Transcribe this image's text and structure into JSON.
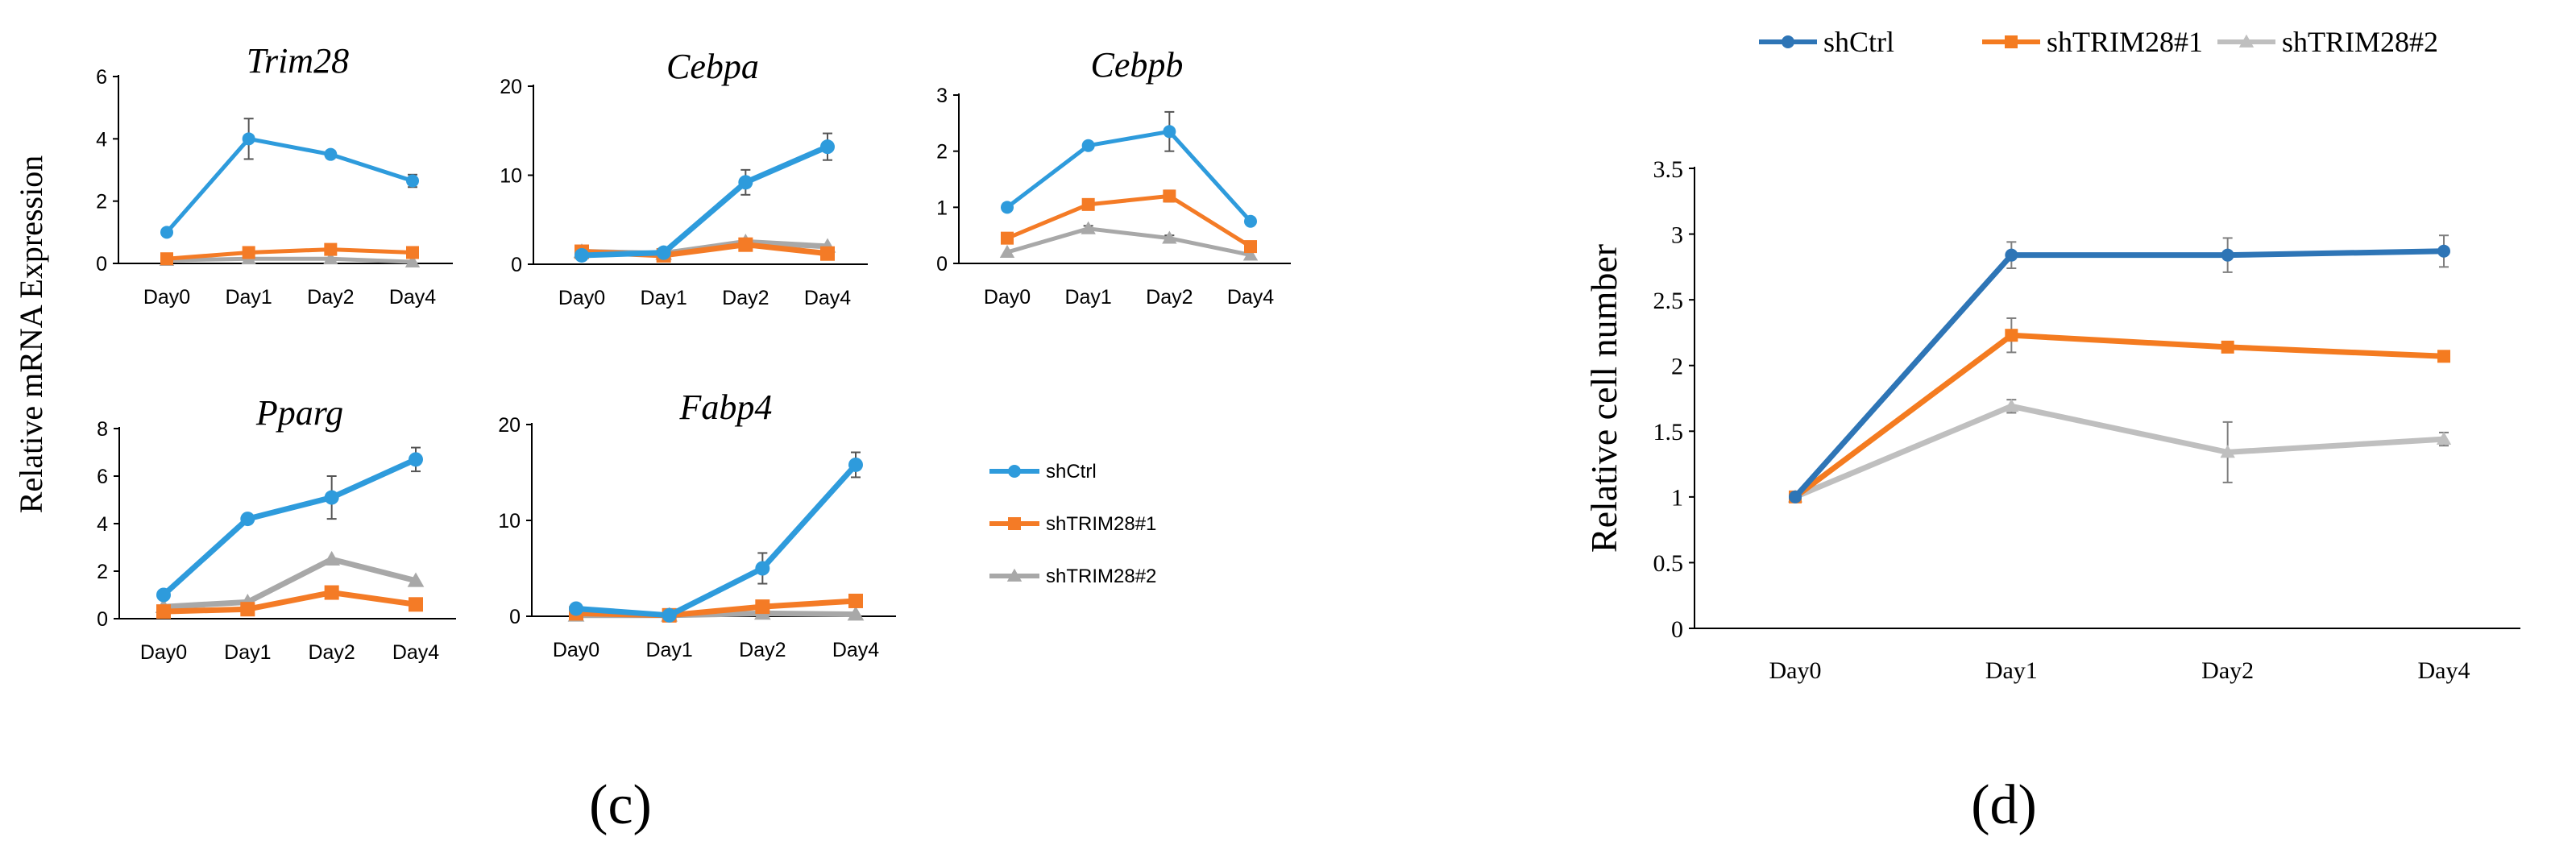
{
  "panel_c": {
    "label": "(c)",
    "ylabel": "Relative  mRNA  Expression",
    "legend": [
      "shCtrl",
      "shTRIM28#1",
      "shTRIM28#2"
    ]
  },
  "panel_d": {
    "label": "(d)",
    "legend": [
      "shCtrl",
      "shTRIM28#1",
      "shTRIM28#2"
    ]
  },
  "colors": {
    "c_ctrl": "#2E9BDC",
    "c_sh1": "#F47B26",
    "c_sh2": "#A8A8A8",
    "d_ctrl": "#2E75B6",
    "d_sh1": "#F47B20",
    "d_sh2": "#BFBFBF"
  },
  "chart_data": [
    {
      "id": "trim28",
      "panel": "c",
      "type": "line",
      "title": "Trim28",
      "categories": [
        "Day0",
        "Day1",
        "Day2",
        "Day4"
      ],
      "ylim": [
        0,
        6
      ],
      "yticks": [
        0,
        2,
        4,
        6
      ],
      "ytick_labels": [
        "0",
        "2",
        "4",
        "6"
      ],
      "series": [
        {
          "name": "shCtrl",
          "values": [
            1.0,
            4.0,
            3.5,
            2.65
          ],
          "errors": [
            0,
            0.65,
            0.12,
            0.2
          ]
        },
        {
          "name": "shTRIM28#1",
          "values": [
            0.15,
            0.35,
            0.45,
            0.35
          ],
          "errors": [
            0,
            0,
            0,
            0
          ]
        },
        {
          "name": "shTRIM28#2",
          "values": [
            0.1,
            0.15,
            0.15,
            0.05
          ],
          "errors": [
            0,
            0,
            0,
            0
          ]
        }
      ]
    },
    {
      "id": "cebpa",
      "panel": "c",
      "type": "line",
      "title": "Cebpa",
      "categories": [
        "Day0",
        "Day1",
        "Day2",
        "Day4"
      ],
      "ylim": [
        0,
        20
      ],
      "yticks": [
        0,
        10,
        20
      ],
      "ytick_labels": [
        "0",
        "10",
        "20"
      ],
      "series": [
        {
          "name": "shCtrl",
          "values": [
            1.0,
            1.3,
            9.2,
            13.2
          ],
          "errors": [
            0,
            0,
            1.4,
            1.5
          ]
        },
        {
          "name": "shTRIM28#1",
          "values": [
            1.4,
            1.0,
            2.2,
            1.2
          ],
          "errors": [
            0,
            0,
            0,
            0
          ]
        },
        {
          "name": "shTRIM28#2",
          "values": [
            1.4,
            1.2,
            2.5,
            2.0
          ],
          "errors": [
            0,
            0,
            0,
            0
          ]
        }
      ]
    },
    {
      "id": "cebpb",
      "panel": "c",
      "type": "line",
      "title": "Cebpb",
      "categories": [
        "Day0",
        "Day1",
        "Day2",
        "Day4"
      ],
      "ylim": [
        0,
        3
      ],
      "yticks": [
        0,
        1,
        2,
        3
      ],
      "ytick_labels": [
        "0",
        "1",
        "2",
        "3"
      ],
      "series": [
        {
          "name": "shCtrl",
          "values": [
            1.0,
            2.1,
            2.35,
            0.75
          ],
          "errors": [
            0,
            0,
            0.35,
            0
          ]
        },
        {
          "name": "shTRIM28#1",
          "values": [
            0.45,
            1.05,
            1.2,
            0.3
          ],
          "errors": [
            0,
            0,
            0.1,
            0
          ]
        },
        {
          "name": "shTRIM28#2",
          "values": [
            0.2,
            0.62,
            0.45,
            0.15
          ],
          "errors": [
            0,
            0.05,
            0.05,
            0
          ]
        }
      ]
    },
    {
      "id": "pparg",
      "panel": "c",
      "type": "line",
      "title": "Pparg",
      "categories": [
        "Day0",
        "Day1",
        "Day2",
        "Day4"
      ],
      "ylim": [
        0,
        8
      ],
      "yticks": [
        0,
        2,
        4,
        6,
        8
      ],
      "ytick_labels": [
        "0",
        "2",
        "4",
        "6",
        "8"
      ],
      "series": [
        {
          "name": "shCtrl",
          "values": [
            1.0,
            4.2,
            5.1,
            6.7
          ],
          "errors": [
            0,
            0,
            0.9,
            0.5
          ]
        },
        {
          "name": "shTRIM28#1",
          "values": [
            0.3,
            0.4,
            1.1,
            0.6
          ],
          "errors": [
            0,
            0,
            0,
            0
          ]
        },
        {
          "name": "shTRIM28#2",
          "values": [
            0.5,
            0.7,
            2.5,
            1.6
          ],
          "errors": [
            0,
            0,
            0,
            0
          ]
        }
      ]
    },
    {
      "id": "fabp4",
      "panel": "c",
      "type": "line",
      "title": "Fabp4",
      "categories": [
        "Day0",
        "Day1",
        "Day2",
        "Day4"
      ],
      "ylim": [
        0,
        20
      ],
      "yticks": [
        0,
        10,
        20
      ],
      "ytick_labels": [
        "0",
        "10",
        "20"
      ],
      "series": [
        {
          "name": "shCtrl",
          "values": [
            0.8,
            0.1,
            5.0,
            15.8
          ],
          "errors": [
            0,
            0,
            1.6,
            1.3
          ]
        },
        {
          "name": "shTRIM28#1",
          "values": [
            0.3,
            0.1,
            1.0,
            1.6
          ],
          "errors": [
            0,
            0,
            0,
            0
          ]
        },
        {
          "name": "shTRIM28#2",
          "values": [
            0.1,
            0.1,
            0.3,
            0.2
          ],
          "errors": [
            0,
            0,
            0,
            0
          ]
        }
      ]
    },
    {
      "id": "cellnumber",
      "panel": "d",
      "type": "line",
      "title": "",
      "ylabel": "Relative cell number",
      "categories": [
        "Day0",
        "Day1",
        "Day2",
        "Day4"
      ],
      "ylim": [
        0,
        3.5
      ],
      "yticks": [
        0,
        0.5,
        1,
        1.5,
        2,
        2.5,
        3,
        3.5
      ],
      "ytick_labels": [
        "0",
        "0.5",
        "1",
        "1.5",
        "2",
        "2.5",
        "3",
        "3.5"
      ],
      "series": [
        {
          "name": "shCtrl",
          "values": [
            1.0,
            2.84,
            2.84,
            2.87
          ],
          "errors": [
            0,
            0.1,
            0.13,
            0.12
          ]
        },
        {
          "name": "shTRIM28#1",
          "values": [
            1.0,
            2.23,
            2.14,
            2.07
          ],
          "errors": [
            0,
            0.13,
            0.04,
            0.03
          ]
        },
        {
          "name": "shTRIM28#2",
          "values": [
            1.0,
            1.69,
            1.34,
            1.44
          ],
          "errors": [
            0,
            0.05,
            0.23,
            0.05
          ]
        }
      ]
    }
  ]
}
